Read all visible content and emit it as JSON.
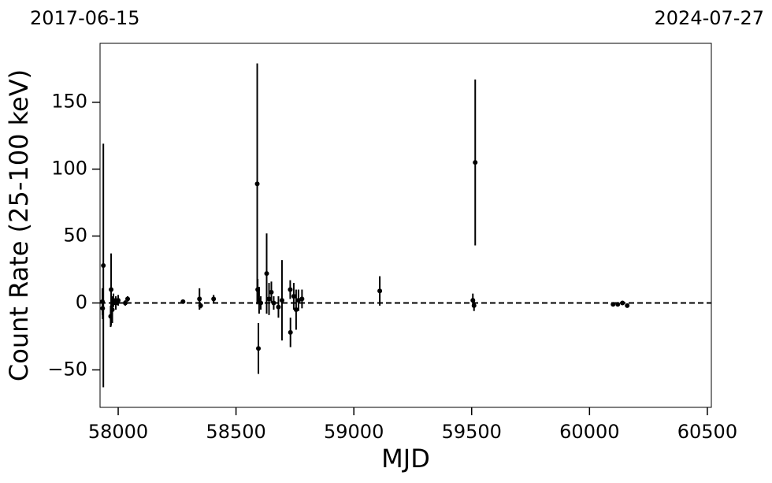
{
  "chart_data": {
    "type": "errorbar",
    "date_start": "2017-06-15",
    "date_end": "2024-07-27",
    "xlabel": "MJD",
    "ylabel": "Count Rate (25-100 keV)",
    "color": "#000000",
    "hline": 0,
    "xlim": [
      57923,
      60517
    ],
    "ylim": [
      -78,
      194
    ],
    "xticks": [
      58000,
      58500,
      59000,
      59500,
      60000,
      60500
    ],
    "yticks": [
      {
        "value": -50,
        "label": "−50"
      },
      0,
      50,
      100,
      150
    ],
    "x": [
      57933,
      57934,
      57937,
      57968,
      57970,
      57975,
      57980,
      57990,
      58000,
      58030,
      58040,
      58275,
      58345,
      58350,
      58405,
      58590,
      58592,
      58595,
      58598,
      58605,
      58630,
      58640,
      58650,
      58660,
      58680,
      58695,
      58730,
      58731,
      58745,
      58755,
      58765,
      58780,
      59110,
      59505,
      59510,
      59515,
      60100,
      60120,
      60140,
      60160
    ],
    "values": [
      1,
      -4,
      28,
      -10,
      10,
      -5,
      2,
      0,
      2,
      0,
      3,
      1,
      3,
      -2,
      3,
      89,
      10,
      -34,
      2,
      0,
      22,
      3,
      8,
      0,
      -3,
      2,
      10,
      -22,
      5,
      -5,
      2,
      3,
      9,
      2,
      -2,
      105,
      -1,
      -1,
      0,
      -2
    ],
    "errors": [
      10,
      8,
      91,
      8,
      27,
      10,
      5,
      5,
      4,
      2,
      2,
      1,
      8,
      2,
      3,
      90,
      8,
      19,
      10,
      5,
      30,
      12,
      8,
      5,
      8,
      30,
      7,
      11,
      10,
      15,
      8,
      7,
      11,
      5,
      4,
      62,
      1,
      1,
      1,
      1
    ]
  }
}
